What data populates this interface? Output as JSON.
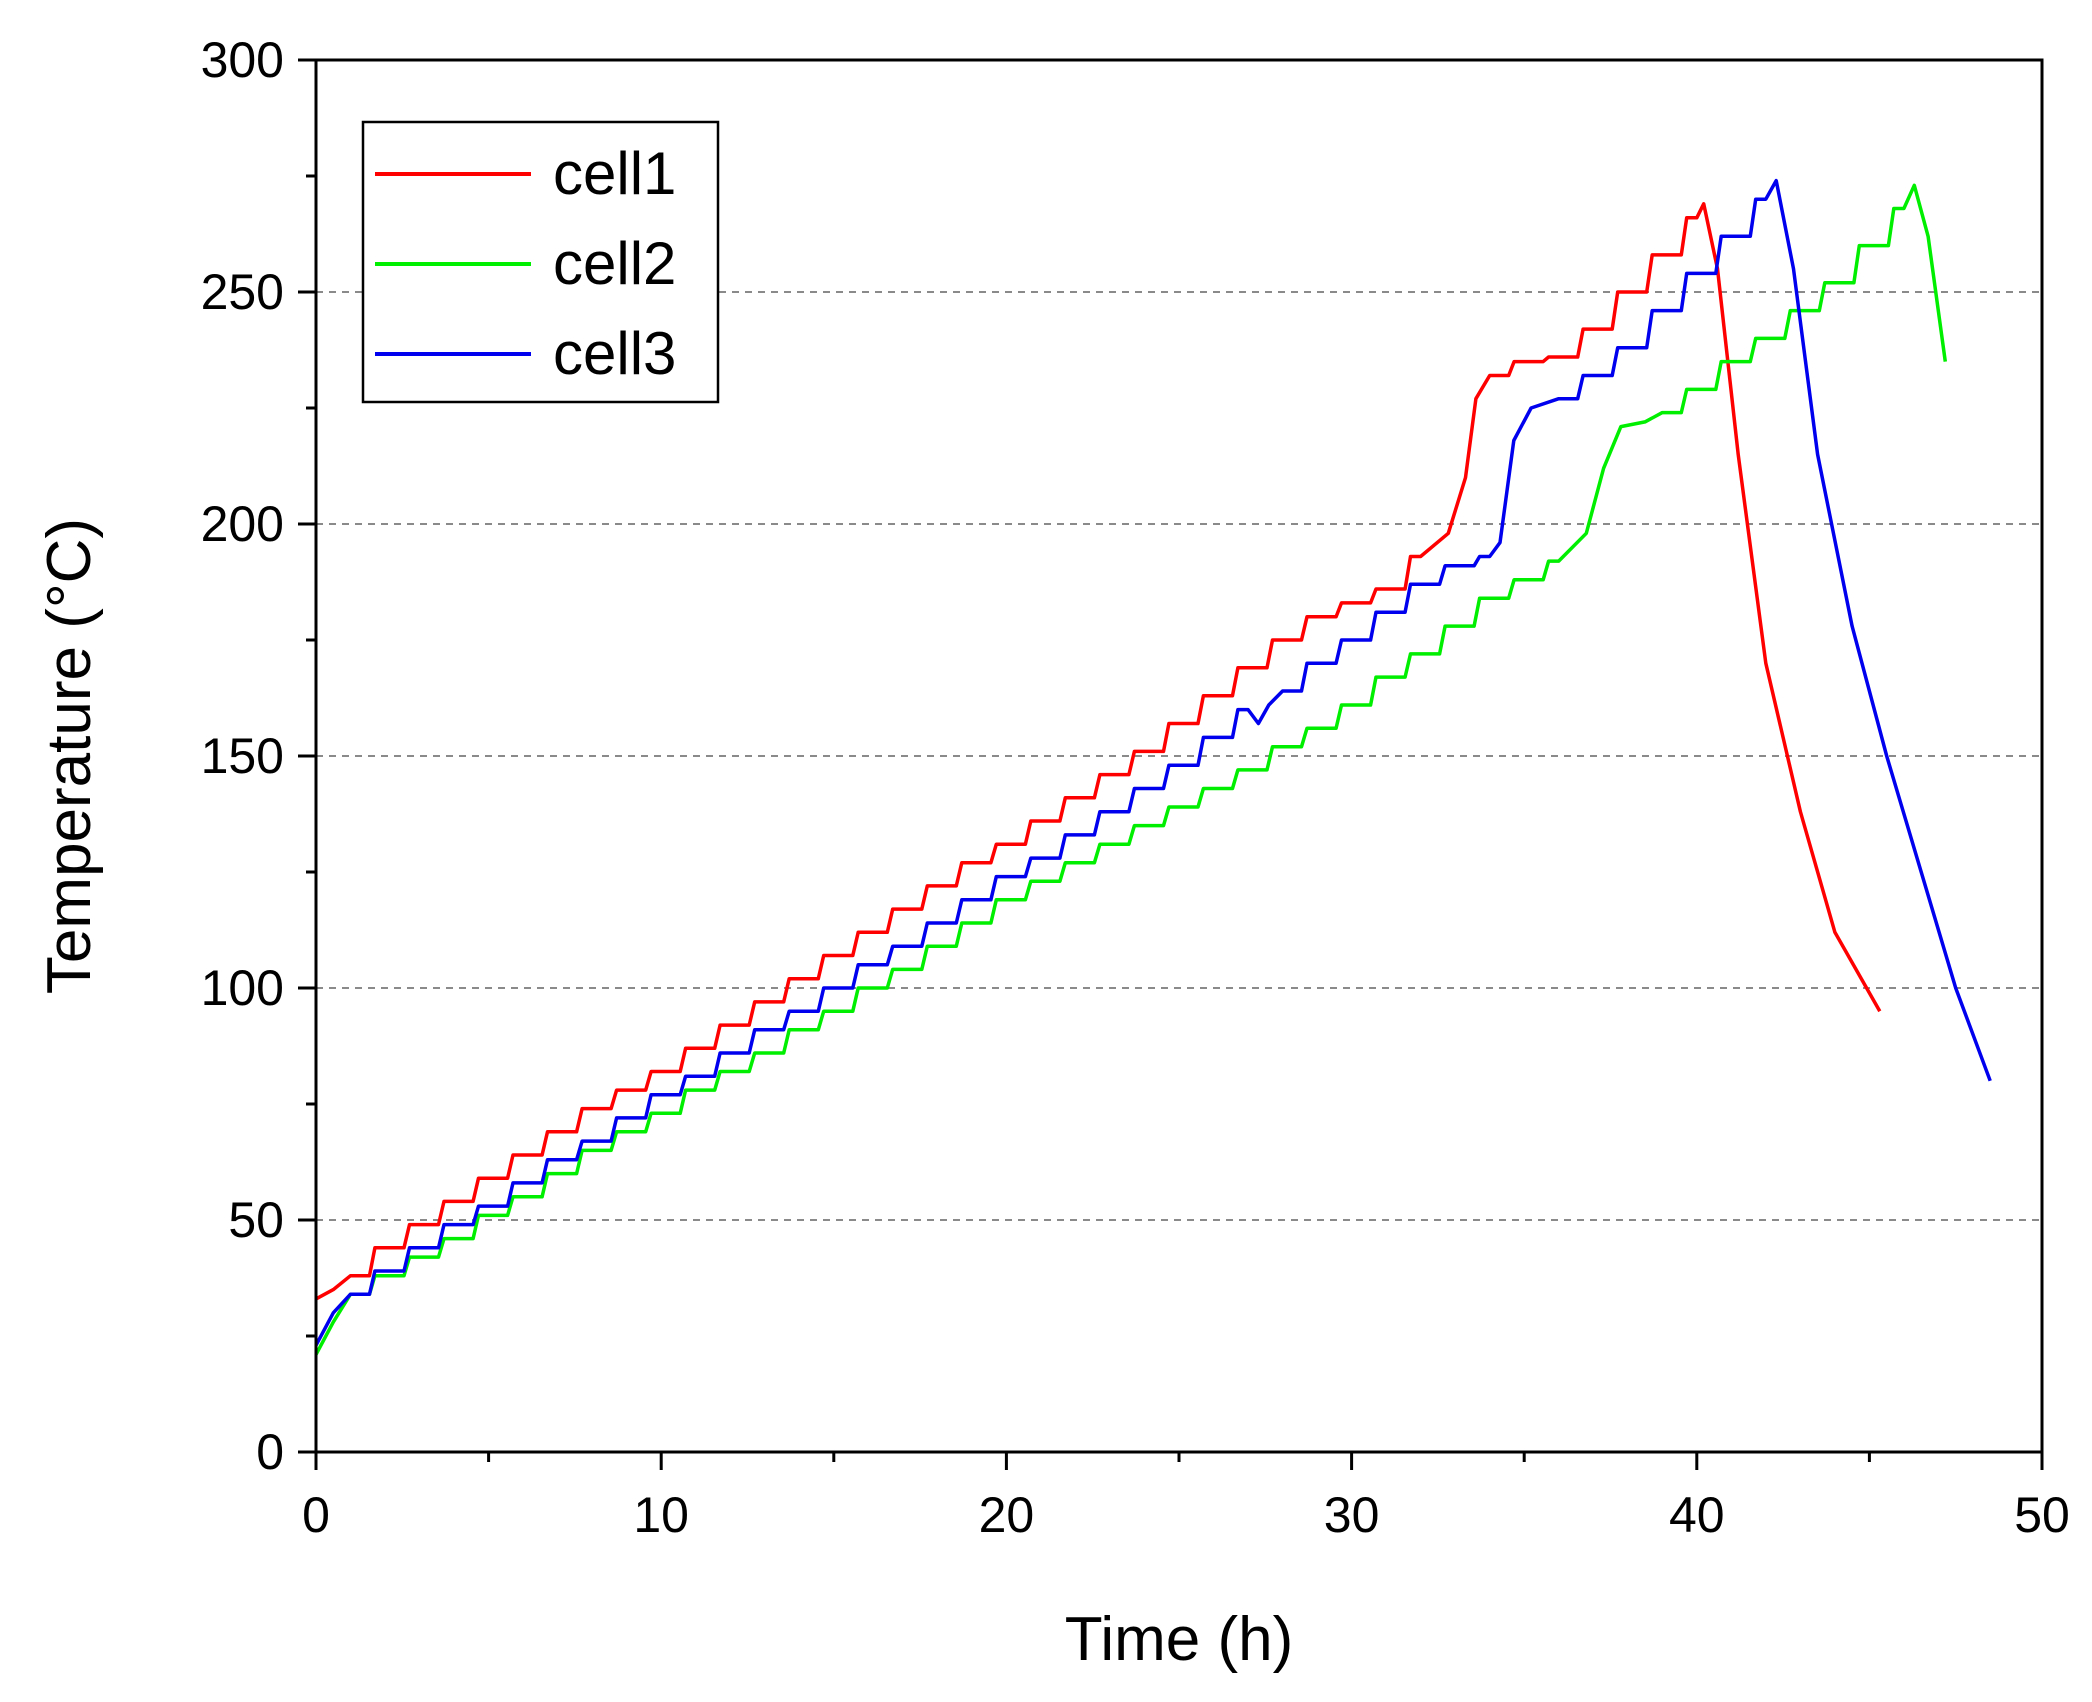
{
  "chart_data": {
    "type": "line",
    "title": "",
    "xlabel": "Time (h)",
    "ylabel": "Temperature (°C)",
    "xlim": [
      0,
      50
    ],
    "ylim": [
      0,
      300
    ],
    "xticks": [
      0,
      10,
      20,
      30,
      40,
      50
    ],
    "yticks": [
      0,
      50,
      100,
      150,
      200,
      250,
      300
    ],
    "grid": "horizontal dashed",
    "legend_position": "top-left",
    "series": [
      {
        "name": "cell1",
        "color": "#ff0000",
        "x": [
          0,
          0.5,
          1,
          2,
          3,
          4,
          5,
          6,
          7,
          8,
          9,
          10,
          11,
          12,
          13,
          14,
          15,
          16,
          17,
          18,
          19,
          20,
          21,
          22,
          23,
          24,
          25,
          26,
          27,
          28,
          29,
          30,
          31,
          32,
          32.8,
          33.3,
          33.6,
          34,
          35,
          36,
          37,
          38,
          39,
          40,
          40.2,
          40.6,
          41.2,
          42,
          43,
          44,
          45.3
        ],
        "y": [
          33,
          35,
          38,
          44,
          49,
          54,
          59,
          64,
          69,
          74,
          78,
          82,
          87,
          92,
          97,
          102,
          107,
          112,
          117,
          122,
          127,
          131,
          136,
          141,
          146,
          151,
          157,
          163,
          169,
          175,
          180,
          183,
          186,
          193,
          198,
          210,
          227,
          232,
          235,
          236,
          242,
          250,
          258,
          266,
          269,
          255,
          215,
          170,
          138,
          112,
          95
        ]
      },
      {
        "name": "cell2",
        "color": "#00ee00",
        "x": [
          0,
          0.5,
          1,
          2,
          3,
          4,
          5,
          6,
          7,
          8,
          9,
          10,
          11,
          12,
          13,
          14,
          15,
          16,
          17,
          18,
          19,
          20,
          21,
          22,
          23,
          24,
          25,
          26,
          27,
          28,
          29,
          30,
          31,
          32,
          33,
          34,
          35,
          36,
          36.8,
          37.3,
          37.8,
          38.5,
          39,
          40,
          41,
          42,
          43,
          44,
          45,
          46,
          46.3,
          46.7,
          47.2
        ],
        "y": [
          21,
          28,
          34,
          38,
          42,
          46,
          51,
          55,
          60,
          65,
          69,
          73,
          78,
          82,
          86,
          91,
          95,
          100,
          104,
          109,
          114,
          119,
          123,
          127,
          131,
          135,
          139,
          143,
          147,
          152,
          156,
          161,
          167,
          172,
          178,
          184,
          188,
          192,
          198,
          212,
          221,
          222,
          224,
          229,
          235,
          240,
          246,
          252,
          260,
          268,
          273,
          262,
          235
        ]
      },
      {
        "name": "cell3",
        "color": "#0000ee",
        "x": [
          0,
          0.5,
          1,
          2,
          3,
          4,
          5,
          6,
          7,
          8,
          9,
          10,
          11,
          12,
          13,
          14,
          15,
          16,
          17,
          18,
          19,
          20,
          21,
          22,
          23,
          24,
          25,
          26,
          27,
          27.3,
          27.6,
          28,
          29,
          30,
          31,
          32,
          33,
          34,
          34.3,
          34.7,
          35.2,
          36,
          37,
          38,
          39,
          40,
          41,
          42,
          42.3,
          42.8,
          43.5,
          44.5,
          45.5,
          46.5,
          47.5,
          48.5
        ],
        "y": [
          23,
          30,
          34,
          39,
          44,
          49,
          53,
          58,
          63,
          67,
          72,
          77,
          81,
          86,
          91,
          95,
          100,
          105,
          109,
          114,
          119,
          124,
          128,
          133,
          138,
          143,
          148,
          154,
          160,
          157,
          161,
          164,
          170,
          175,
          181,
          187,
          191,
          193,
          196,
          218,
          225,
          227,
          232,
          238,
          246,
          254,
          262,
          270,
          274,
          255,
          215,
          178,
          150,
          125,
          100,
          80
        ]
      }
    ]
  }
}
